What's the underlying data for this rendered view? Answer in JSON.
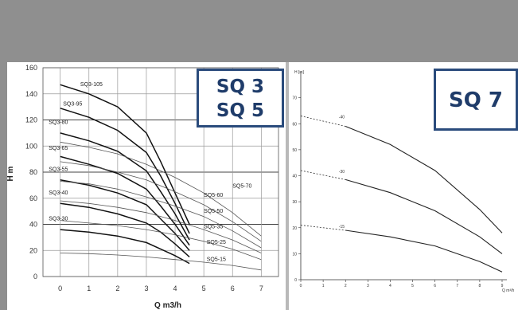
{
  "badges": {
    "left_line1": "SQ 3",
    "left_line2": "SQ 5",
    "right": "SQ 7"
  },
  "chart_data": [
    {
      "type": "line",
      "xlabel": "Q m3/h",
      "ylabel": "H m",
      "xlim": [
        -0.6,
        7.6
      ],
      "ylim": [
        0,
        160
      ],
      "xticks": [
        0,
        1,
        2,
        3,
        4,
        5,
        6,
        7
      ],
      "yticks": [
        0,
        20,
        40,
        60,
        80,
        100,
        120,
        140,
        160
      ],
      "grid": true,
      "series": [
        {
          "name": "SQ3-105",
          "label_at": [
            0.7,
            146
          ],
          "x": [
            0,
            1,
            2,
            3,
            3.5,
            4,
            4.5
          ],
          "y": [
            147,
            140,
            130,
            110,
            88,
            64,
            40
          ]
        },
        {
          "name": "SQ3-95",
          "label_at": [
            0.1,
            131
          ],
          "x": [
            0,
            1,
            2,
            3,
            3.5,
            4,
            4.5
          ],
          "y": [
            129,
            122,
            112,
            95,
            77,
            56,
            33
          ]
        },
        {
          "name": "SQ3-80",
          "label_at": [
            -0.4,
            117
          ],
          "x": [
            0,
            1,
            2,
            3,
            3.5,
            4,
            4.5
          ],
          "y": [
            110,
            104,
            96,
            81,
            65,
            48,
            28
          ]
        },
        {
          "name": "SQ3-65",
          "label_at": [
            -0.4,
            97
          ],
          "x": [
            0,
            1,
            2,
            3,
            3.5,
            4,
            4.5
          ],
          "y": [
            92,
            86,
            79,
            67,
            54,
            40,
            24
          ]
        },
        {
          "name": "SQ3-55",
          "label_at": [
            -0.4,
            81
          ],
          "x": [
            0,
            1,
            2,
            3,
            3.5,
            4,
            4.5
          ],
          "y": [
            74,
            70,
            64,
            55,
            44,
            33,
            20
          ]
        },
        {
          "name": "SQ3-40",
          "label_at": [
            -0.4,
            63
          ],
          "x": [
            0,
            1,
            2,
            3,
            3.5,
            4,
            4.5
          ],
          "y": [
            56,
            53,
            48,
            41,
            34,
            25,
            15
          ]
        },
        {
          "name": "SQ3-30",
          "label_at": [
            -0.4,
            43
          ],
          "x": [
            0,
            1,
            2,
            3,
            3.5,
            4,
            4.5
          ],
          "y": [
            36,
            34,
            31,
            26,
            21,
            16,
            10
          ]
        },
        {
          "name": "SQ5-70",
          "label_at": [
            6.0,
            68
          ],
          "x": [
            0,
            1,
            2,
            3,
            4,
            5,
            6,
            7
          ],
          "y": [
            103,
            99,
            94,
            86,
            76,
            64,
            49,
            31
          ]
        },
        {
          "name": "SQ5-60",
          "label_at": [
            5.0,
            61
          ],
          "x": [
            0,
            1,
            2,
            3,
            4,
            5,
            6,
            7
          ],
          "y": [
            88,
            85,
            80,
            74,
            65,
            55,
            42,
            27
          ]
        },
        {
          "name": "SQ5-50",
          "label_at": [
            5.0,
            49
          ],
          "x": [
            0,
            1,
            2,
            3,
            4,
            5,
            6,
            7
          ],
          "y": [
            73,
            71,
            67,
            61,
            54,
            46,
            35,
            22
          ]
        },
        {
          "name": "SQ5-35",
          "label_at": [
            5.0,
            37
          ],
          "x": [
            0,
            1,
            2,
            3,
            4,
            5,
            6,
            7
          ],
          "y": [
            58,
            56,
            53,
            49,
            43,
            36,
            28,
            18
          ]
        },
        {
          "name": "SQ5-25",
          "label_at": [
            5.1,
            25
          ],
          "x": [
            0,
            1,
            2,
            3,
            4,
            5,
            6,
            7
          ],
          "y": [
            43,
            41,
            39,
            36,
            32,
            27,
            21,
            13
          ]
        },
        {
          "name": "SQ5-15",
          "label_at": [
            5.1,
            12
          ],
          "x": [
            0,
            1,
            2,
            3,
            4,
            5,
            6,
            7
          ],
          "y": [
            18,
            17.5,
            16.5,
            15,
            13,
            11,
            8.5,
            5
          ]
        }
      ]
    },
    {
      "type": "line",
      "xlabel": "Q m³/h",
      "ylabel": "H [m]",
      "xlim": [
        0,
        9
      ],
      "ylim": [
        0,
        80
      ],
      "xticks": [
        0,
        1,
        2,
        3,
        4,
        5,
        6,
        7,
        8,
        9
      ],
      "yticks": [
        0,
        10,
        20,
        30,
        40,
        50,
        60,
        70
      ],
      "grid": false,
      "series": [
        {
          "name": "-40",
          "label_at": [
            1.7,
            62
          ],
          "x": [
            0,
            2,
            4,
            6,
            8,
            9
          ],
          "y": [
            63,
            59,
            52,
            42,
            27,
            18
          ]
        },
        {
          "name": "-30",
          "label_at": [
            1.7,
            41
          ],
          "x": [
            0,
            2,
            4,
            6,
            8,
            9
          ],
          "y": [
            42,
            38.5,
            33.5,
            26.5,
            16.5,
            10
          ]
        },
        {
          "name": "-15",
          "label_at": [
            1.7,
            20
          ],
          "x": [
            0,
            2,
            4,
            6,
            8,
            9
          ],
          "y": [
            21,
            19,
            16.5,
            13,
            7,
            3
          ]
        }
      ]
    }
  ]
}
